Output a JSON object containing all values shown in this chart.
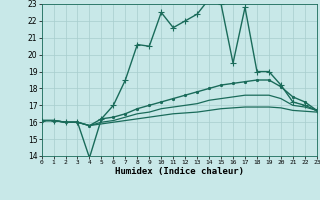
{
  "xlabel": "Humidex (Indice chaleur)",
  "ylabel": "",
  "bg_color": "#c8e8e8",
  "line_color": "#1a6b5a",
  "grid_color": "#a8cece",
  "xlim": [
    0,
    23
  ],
  "ylim": [
    14,
    23
  ],
  "xticks": [
    0,
    1,
    2,
    3,
    4,
    5,
    6,
    7,
    8,
    9,
    10,
    11,
    12,
    13,
    14,
    15,
    16,
    17,
    18,
    19,
    20,
    21,
    22,
    23
  ],
  "yticks": [
    14,
    15,
    16,
    17,
    18,
    19,
    20,
    21,
    22,
    23
  ],
  "series": [
    {
      "x": [
        0,
        1,
        2,
        3,
        4,
        5,
        6,
        7,
        8,
        9,
        10,
        11,
        12,
        13,
        14,
        15,
        16,
        17,
        18,
        19,
        20,
        21,
        22,
        23
      ],
      "y": [
        16.1,
        16.1,
        16.0,
        16.0,
        13.9,
        16.2,
        17.0,
        18.5,
        20.6,
        20.5,
        22.5,
        21.6,
        22.0,
        22.4,
        23.3,
        23.0,
        19.5,
        22.8,
        19.0,
        19.0,
        18.2,
        17.2,
        17.0,
        16.7
      ],
      "marker": "+",
      "linestyle": "-",
      "linewidth": 1.0,
      "markersize": 4
    },
    {
      "x": [
        0,
        1,
        2,
        3,
        4,
        5,
        6,
        7,
        8,
        9,
        10,
        11,
        12,
        13,
        14,
        15,
        16,
        17,
        18,
        19,
        20,
        21,
        22,
        23
      ],
      "y": [
        16.1,
        16.1,
        16.0,
        16.0,
        15.8,
        16.2,
        16.3,
        16.5,
        16.8,
        17.0,
        17.2,
        17.4,
        17.6,
        17.8,
        18.0,
        18.2,
        18.3,
        18.4,
        18.5,
        18.5,
        18.1,
        17.5,
        17.2,
        16.7
      ],
      "marker": ".",
      "linestyle": "-",
      "linewidth": 1.0,
      "markersize": 3
    },
    {
      "x": [
        0,
        1,
        2,
        3,
        4,
        5,
        6,
        7,
        8,
        9,
        10,
        11,
        12,
        13,
        14,
        15,
        16,
        17,
        18,
        19,
        20,
        21,
        22,
        23
      ],
      "y": [
        16.1,
        16.1,
        16.0,
        16.0,
        15.8,
        16.0,
        16.1,
        16.3,
        16.5,
        16.6,
        16.8,
        16.9,
        17.0,
        17.1,
        17.3,
        17.4,
        17.5,
        17.6,
        17.6,
        17.6,
        17.4,
        17.0,
        16.9,
        16.7
      ],
      "marker": null,
      "linestyle": "-",
      "linewidth": 0.9,
      "markersize": 0
    },
    {
      "x": [
        0,
        1,
        2,
        3,
        4,
        5,
        6,
        7,
        8,
        9,
        10,
        11,
        12,
        13,
        14,
        15,
        16,
        17,
        18,
        19,
        20,
        21,
        22,
        23
      ],
      "y": [
        16.1,
        16.1,
        16.0,
        16.0,
        15.8,
        15.9,
        16.0,
        16.1,
        16.2,
        16.3,
        16.4,
        16.5,
        16.55,
        16.6,
        16.7,
        16.8,
        16.85,
        16.9,
        16.9,
        16.9,
        16.85,
        16.7,
        16.65,
        16.6
      ],
      "marker": null,
      "linestyle": "-",
      "linewidth": 0.9,
      "markersize": 0
    }
  ]
}
